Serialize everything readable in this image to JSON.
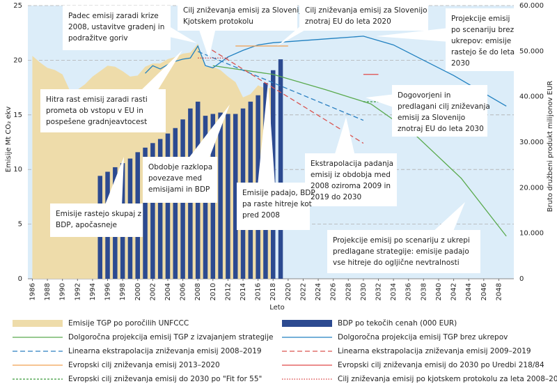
{
  "chart_data": {
    "type": "combo",
    "xlabel": "Leto",
    "ylabel": "Emisije Mt CO₂ ekv",
    "y2label": "Bruto družbeni produkt milijonov EUR",
    "xlim": [
      1985.4,
      2050
    ],
    "xticks": [
      1986,
      1988,
      1990,
      1992,
      1994,
      1996,
      1998,
      2000,
      2002,
      2004,
      2006,
      2008,
      2010,
      2012,
      2014,
      2016,
      2018,
      2020,
      2022,
      2024,
      2026,
      2028,
      2030,
      2032,
      2034,
      2036,
      2038,
      2040,
      2042,
      2044,
      2046,
      2048
    ],
    "ylim": [
      0,
      25
    ],
    "yticks": [
      0,
      5,
      10,
      15,
      20,
      25
    ],
    "y2lim": [
      0,
      60000
    ],
    "y2ticks": [
      0,
      {
        "value": 10000,
        "label": "10.000"
      },
      {
        "value": 20000,
        "label": "20.000"
      },
      {
        "value": 30000,
        "label": "30.000"
      },
      {
        "value": 40000,
        "label": "40.000"
      },
      {
        "value": 50000,
        "label": "50.000"
      },
      {
        "value": 60000,
        "label": "60.000"
      }
    ],
    "grid": true,
    "series": [
      {
        "name": "Emisije TGP po poročilih UNFCCC",
        "type": "area",
        "color": "#eedcaa",
        "x": [
          1986,
          1987,
          1988,
          1989,
          1990,
          1991,
          1992,
          1993,
          1994,
          1995,
          1996,
          1997,
          1998,
          1999,
          2000,
          2001,
          2002,
          2003,
          2004,
          2005,
          2006,
          2007,
          2008,
          2009,
          2010,
          2011,
          2012,
          2013,
          2014,
          2015,
          2016,
          2017,
          2018
        ],
        "values": [
          20.4,
          19.8,
          19.3,
          19.1,
          18.7,
          17.2,
          17.3,
          17.8,
          18.5,
          19.0,
          19.5,
          19.4,
          19.0,
          18.5,
          18.6,
          19.4,
          19.7,
          19.7,
          20.1,
          20.3,
          20.6,
          20.7,
          21.5,
          19.4,
          19.4,
          19.1,
          18.5,
          18.0,
          16.6,
          16.9,
          17.7,
          17.4,
          17.5
        ]
      },
      {
        "name": "BDP po tekočih cenah (000 EUR)",
        "type": "bar",
        "axis": "y2",
        "color": "#2c4a90",
        "x": [
          1995,
          1996,
          1997,
          1998,
          1999,
          2000,
          2001,
          2002,
          2003,
          2004,
          2005,
          2006,
          2007,
          2008,
          2009,
          2010,
          2011,
          2012,
          2013,
          2014,
          2015,
          2016,
          2017,
          2018,
          2019
        ],
        "values": [
          22600,
          23500,
          24500,
          25400,
          26400,
          27800,
          28800,
          29800,
          30700,
          31900,
          33100,
          35000,
          37400,
          38900,
          35800,
          36200,
          36500,
          36200,
          36200,
          37400,
          38900,
          40300,
          43000,
          45800,
          48200
        ]
      },
      {
        "name": "Dolgoročna projekcija emisij TGP z izvajanjem strategije",
        "type": "line",
        "color": "#5aaa4e",
        "x": [
          2010,
          2018,
          2025,
          2031,
          2037,
          2043,
          2049
        ],
        "values": [
          19.5,
          18.7,
          17.3,
          16.0,
          13.1,
          9.2,
          3.9
        ]
      },
      {
        "name": "Dolgoročna projekcija emisij TGP brez ukrepov",
        "type": "line",
        "color": "#2080c0",
        "x": [
          2001,
          2002,
          2003,
          2004,
          2005,
          2006,
          2007,
          2008,
          2009,
          2010,
          2012,
          2014,
          2016,
          2018,
          2022,
          2026,
          2030,
          2034,
          2038,
          2042,
          2046,
          2049
        ],
        "values": [
          18.8,
          19.5,
          19.2,
          19.6,
          19.9,
          20.1,
          20.2,
          21.3,
          19.5,
          19.3,
          20.3,
          20.9,
          21.4,
          21.6,
          21.8,
          22.0,
          22.2,
          21.4,
          20.0,
          18.6,
          17.0,
          15.8
        ]
      },
      {
        "name": "Linearna ekstrapolacija zniževanja emisij 2008–2019",
        "type": "line",
        "dash": "dashed",
        "color": "#2a7fc1",
        "x": [
          2008,
          2030
        ],
        "values": [
          20.8,
          14.5
        ]
      },
      {
        "name": "Linearna ekstrapolacija zniževanja emisij 2009–2019",
        "type": "line",
        "dash": "dashed",
        "color": "#d9534f",
        "x": [
          2009,
          2030
        ],
        "values": [
          21.3,
          12.4
        ]
      },
      {
        "name": "Evropski cilj zniževanja emisij 2013–2020",
        "type": "line",
        "color": "#f0a050",
        "x": [
          2013,
          2020
        ],
        "values": [
          21.3,
          21.3
        ]
      },
      {
        "name": "Evropski cilj zniževanja emisij do 2030 po Uredbi 218/84",
        "type": "line",
        "color": "#e04848",
        "x": [
          2030,
          2032
        ],
        "values": [
          18.7,
          18.7
        ]
      },
      {
        "name": "Evropski cilj zniževanja emisij do 2030 po \"Fit for 55\"",
        "type": "line",
        "dash": "dashed-fine",
        "color": "#3a9a3a",
        "x": [
          2030,
          2032
        ],
        "values": [
          16.2,
          16.2
        ]
      },
      {
        "name": "Cilj zniževanja emisij po kjotskem protokolu za leta 2008–2012",
        "type": "line",
        "dash": "dotted",
        "color": "#d83838",
        "x": [
          2008,
          2012
        ],
        "values": [
          20.2,
          20.2
        ]
      }
    ],
    "annotations": [
      [
        "Padec emisij zaradi krize",
        "2008, ustavitve gradenj in",
        "podražitve goriv"
      ],
      [
        "Cilj zniževanja emisij za Slovenijo po",
        "Kjotskem protokolu"
      ],
      [
        "Cilj zniževanja emisij za Slovenijo",
        "znotraj EU do leta 2020"
      ],
      [
        "Projekcije emisij",
        "po scenariju brez",
        "ukrepov: emisije",
        "rastejo še do leta",
        "2030"
      ],
      [
        "Hitra rast emisij zaradi rasti",
        "prometa ob vstopu v EU in",
        "pospešene gradnjeavtocest"
      ],
      [
        "Dogovorjeni in",
        "predlagani cilj zniževanja",
        "emisij za Slovenijo",
        "znotraj EU do leta 2030"
      ],
      [
        "Obdobje razklopa",
        "povezave med",
        "emisijami in BDP"
      ],
      [
        "Ekstrapolacija padanja",
        "emisij iz obdobja med",
        "2008 oziroma 2009 in",
        "2019 do 2030"
      ],
      [
        "Emisije padajo, BDP",
        "pa raste hitreje kot",
        "pred 2008"
      ],
      [
        "Emisije rastejo skupaj z",
        "BDP, apočasneje"
      ],
      [
        "Projekcije emisij po scenariju z ukrepi",
        "predlagane strategije: emisije padajo",
        "vse hitreje do ogljične nevtralnosti"
      ]
    ]
  }
}
